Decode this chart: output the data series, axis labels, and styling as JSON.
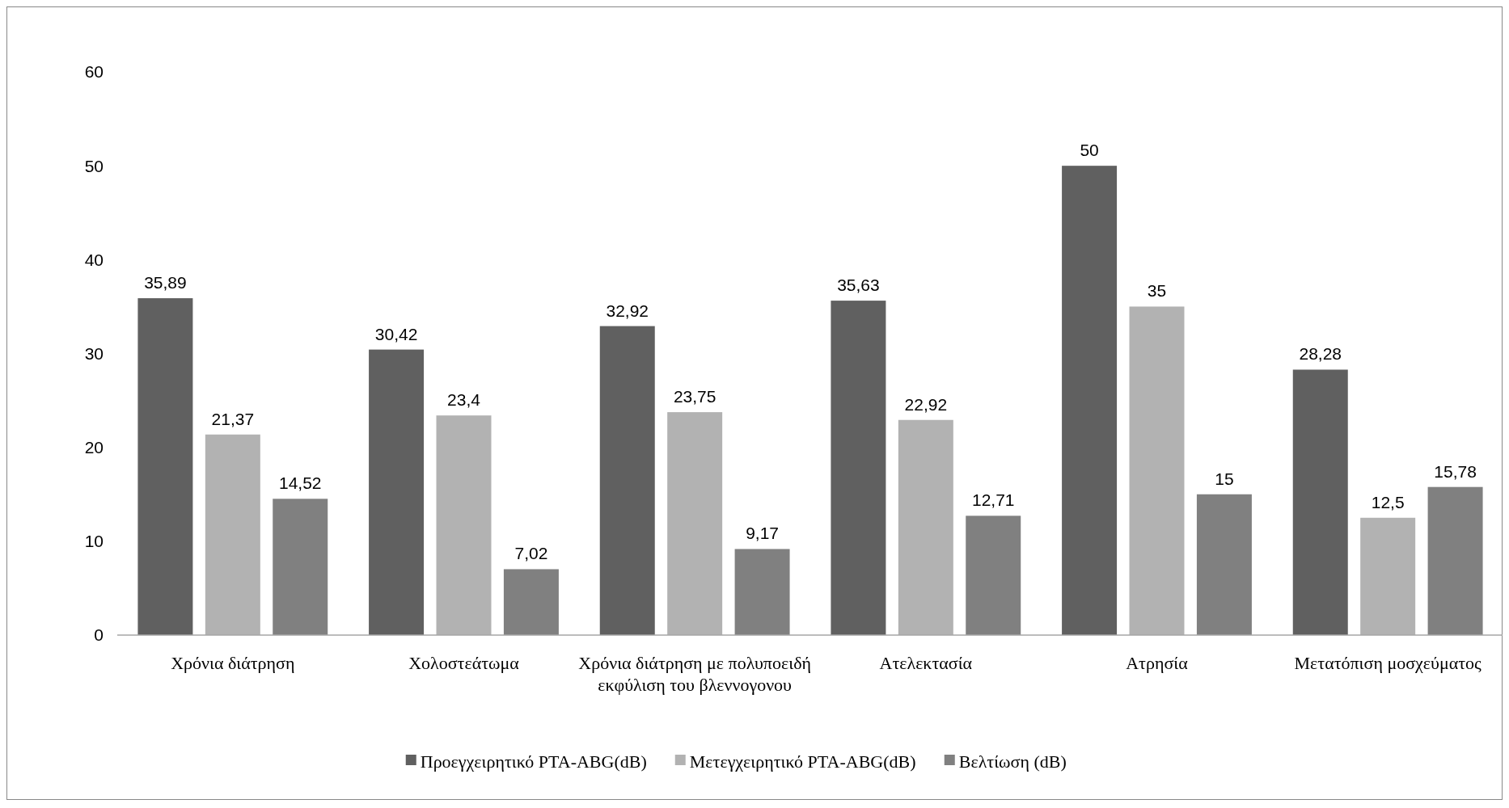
{
  "chart_data": {
    "type": "bar",
    "categories": [
      "Χρόνια διάτρηση",
      "Χολοστεάτωμα",
      "Χρόνια διάτρηση με πολυποειδή εκφύλιση του βλεννογονου",
      "Ατελεκτασία",
      "Ατρησία",
      "Μετατόπιση μοσχεύματος"
    ],
    "series": [
      {
        "name": "Προεγχειρητικό PTA-ABG(dB)",
        "color": "#606060",
        "values": [
          35.89,
          30.42,
          32.92,
          35.63,
          50,
          28.28
        ],
        "value_labels": [
          "35,89",
          "30,42",
          "32,92",
          "35,63",
          "50",
          "28,28"
        ]
      },
      {
        "name": "Μετεγχειρητικό PTA-ABG(dB)",
        "color": "#b2b2b2",
        "values": [
          21.37,
          23.4,
          23.75,
          22.92,
          35,
          12.5
        ],
        "value_labels": [
          "21,37",
          "23,4",
          "23,75",
          "22,92",
          "35",
          "12,5"
        ]
      },
      {
        "name": "Βελτίωση (dB)",
        "color": "#808080",
        "values": [
          14.52,
          7.02,
          9.17,
          12.71,
          15,
          15.78
        ],
        "value_labels": [
          "14,52",
          "7,02",
          "9,17",
          "12,71",
          "15",
          "15,78"
        ]
      }
    ],
    "ylim": [
      0,
      60
    ],
    "yticks": [
      0,
      10,
      20,
      30,
      40,
      50,
      60
    ],
    "grid": false,
    "legend": "bottom"
  }
}
